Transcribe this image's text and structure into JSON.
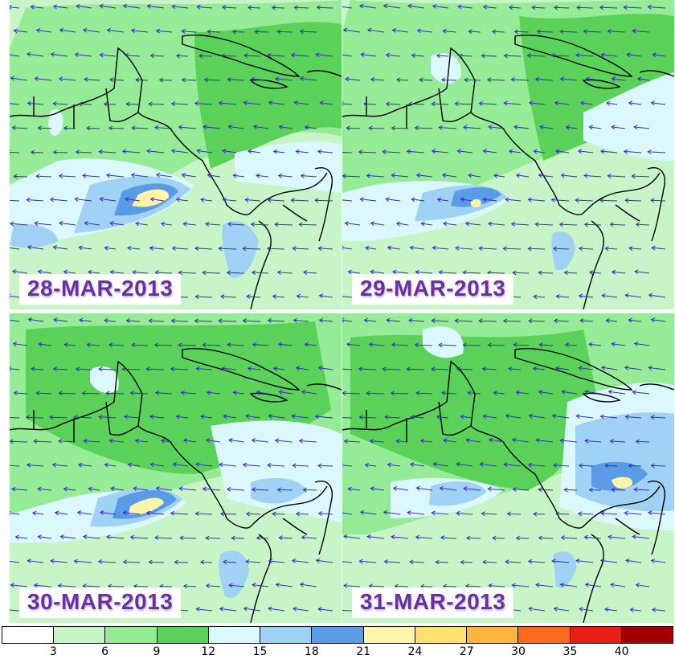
{
  "panels": [
    {
      "date": "28-MAR-2013"
    },
    {
      "date": "29-MAR-2013"
    },
    {
      "date": "30-MAR-2013"
    },
    {
      "date": "31-MAR-2013"
    }
  ],
  "legend": {
    "ticks": [
      "3",
      "6",
      "9",
      "12",
      "15",
      "18",
      "21",
      "24",
      "27",
      "30",
      "35",
      "40"
    ],
    "colors": [
      "#ffffff",
      "#c8f5c8",
      "#96eb96",
      "#5ad25a",
      "#dcf8ff",
      "#a0d2f5",
      "#5a9be6",
      "#fff5aa",
      "#ffe170",
      "#ffb43c",
      "#ff6a1e",
      "#e61e14",
      "#a00000"
    ]
  },
  "map_colors": {
    "light_green": "#c8f5c8",
    "mid_green": "#96eb96",
    "green": "#5ad25a",
    "pale_blue": "#dcf8ff",
    "blue": "#a0d2f5",
    "dark_blue": "#5a9be6",
    "yellow": "#fff5aa",
    "arrow": "#3c28c8",
    "coast": "#000000"
  }
}
